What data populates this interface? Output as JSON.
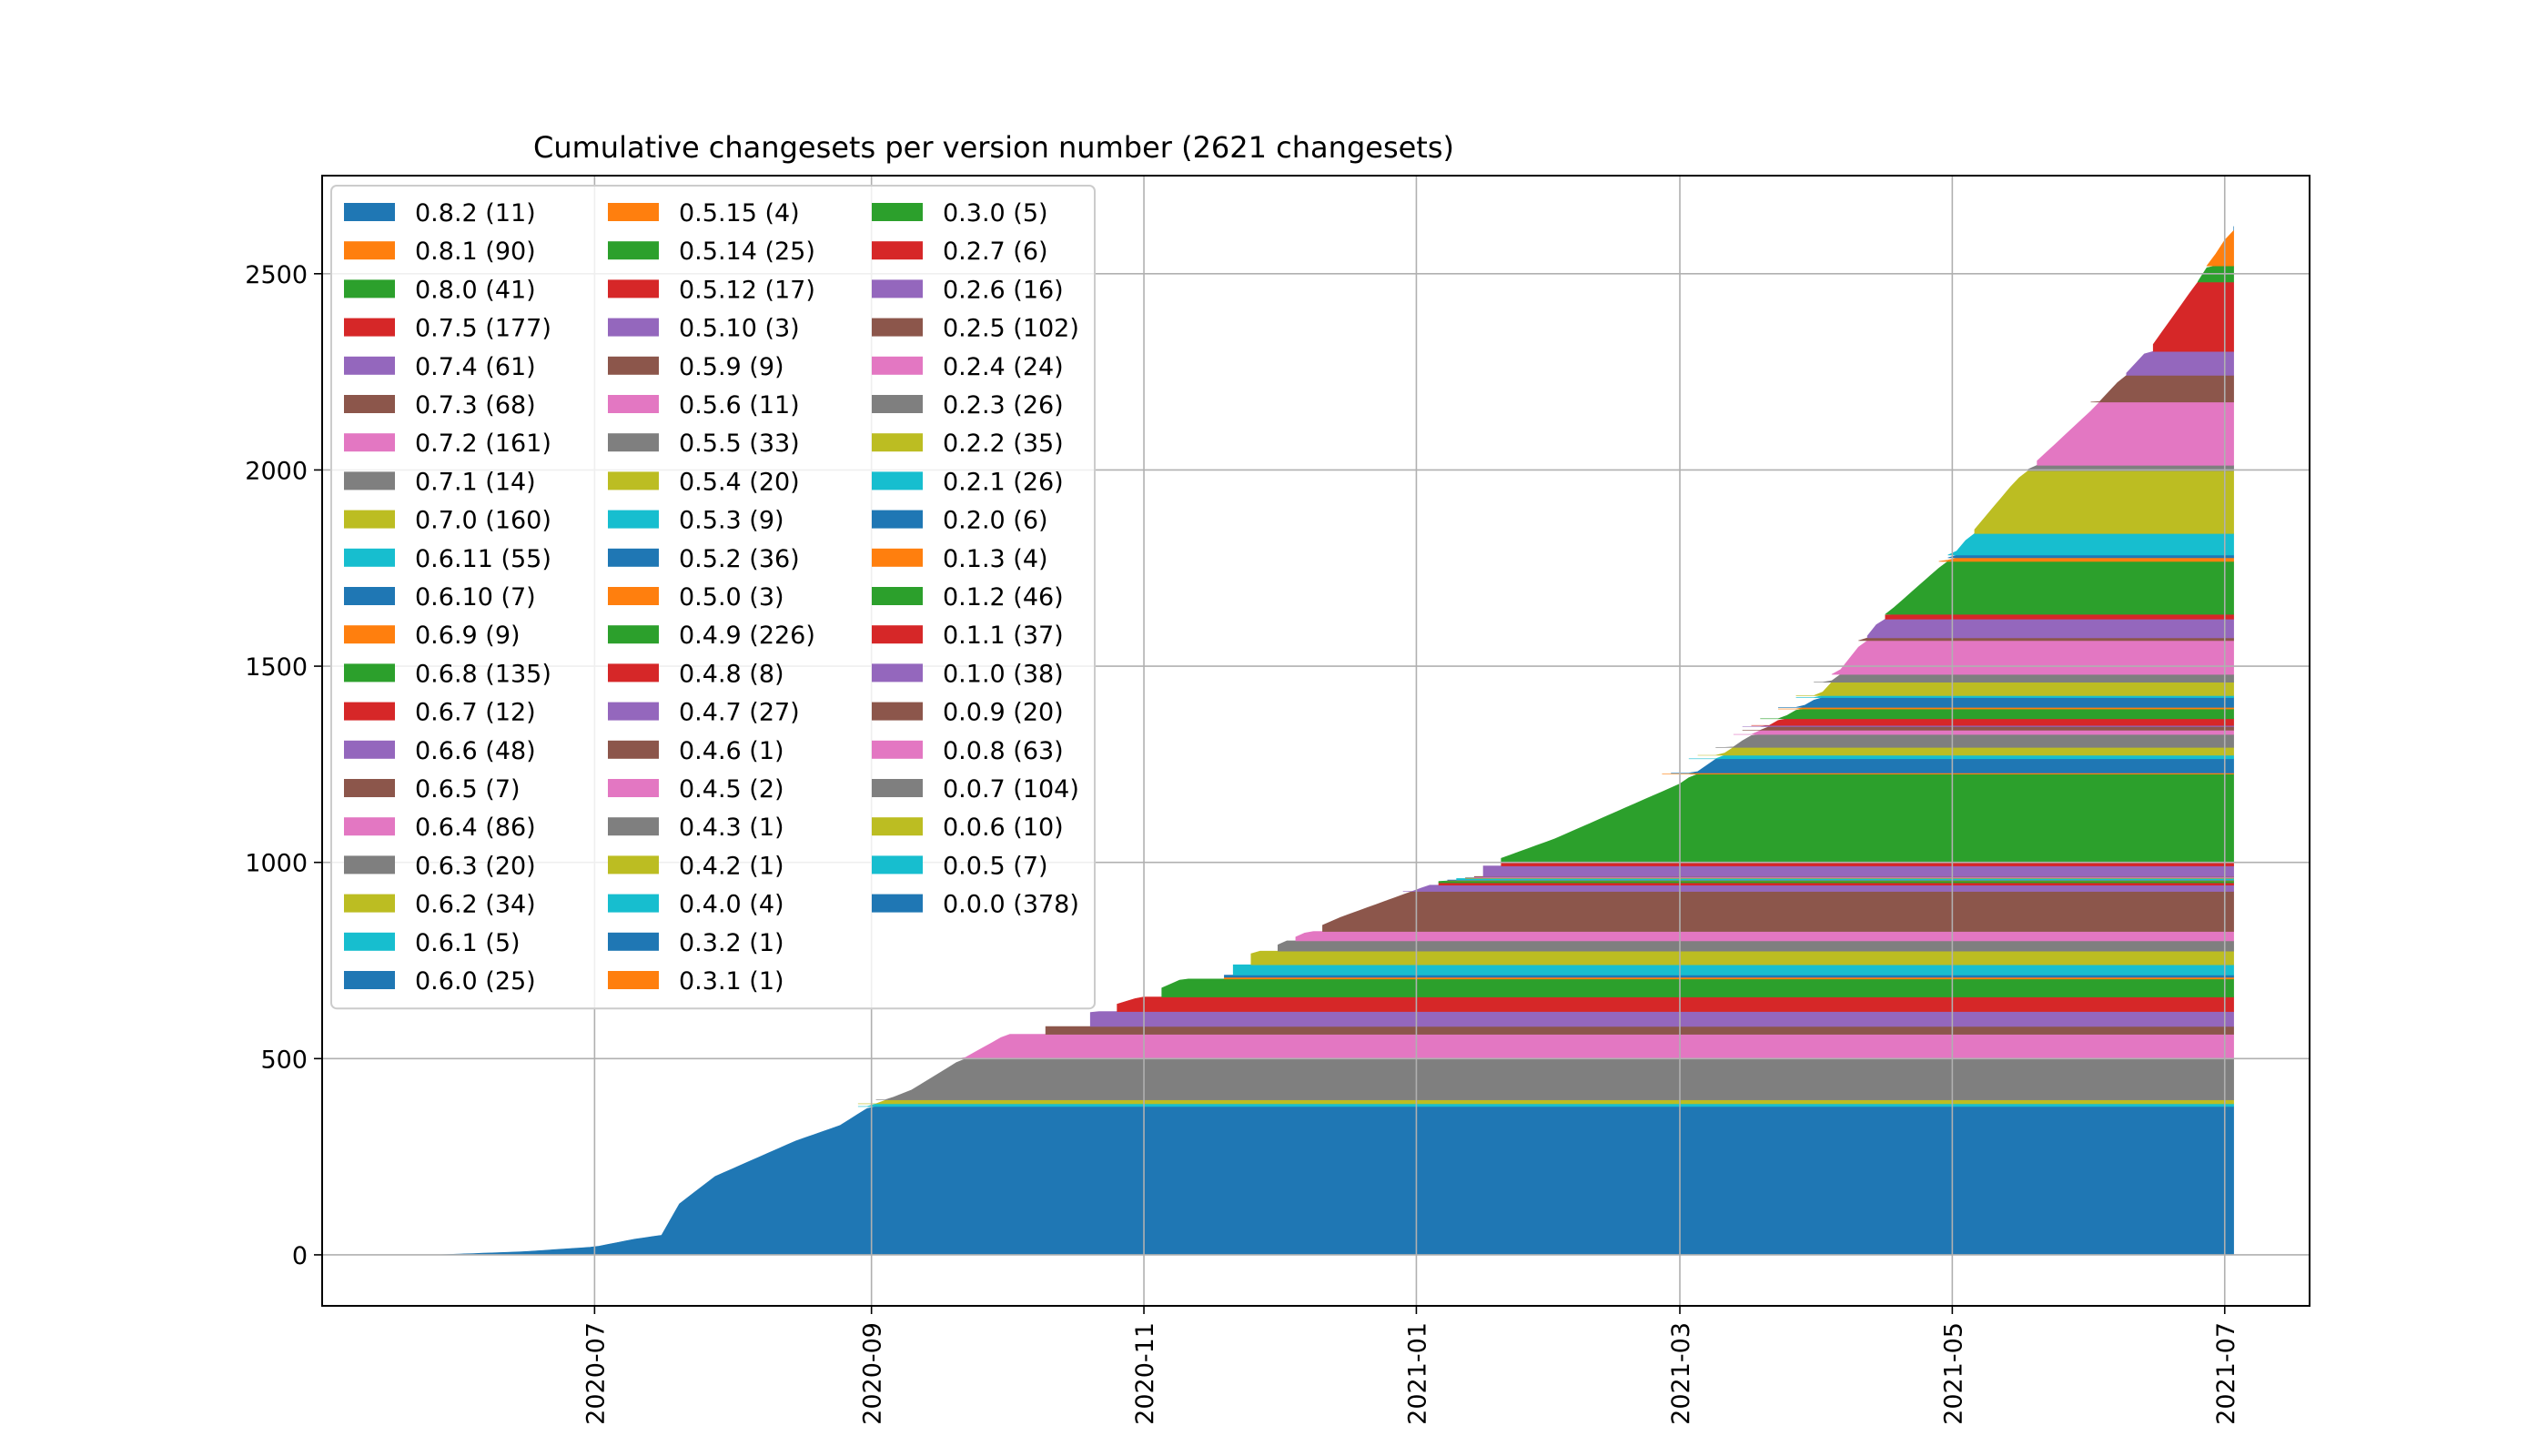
{
  "chart_data": {
    "type": "area",
    "stacked": true,
    "title": "Cumulative changesets per version number (2621 changesets)",
    "xlabel": "",
    "ylabel": "",
    "x_axis_type": "date",
    "xlim": [
      "2020-05-01",
      "2021-07-20"
    ],
    "ylim": [
      -130,
      2750
    ],
    "x_ticks": [
      "2020-07",
      "2020-09",
      "2020-11",
      "2021-01",
      "2021-03",
      "2021-05",
      "2021-07"
    ],
    "y_ticks": [
      0,
      500,
      1000,
      1500,
      2000,
      2500
    ],
    "grid": true,
    "legend_position": "top-left",
    "legend_columns": 3,
    "legend": [
      "0.8.2 (11)",
      "0.8.1 (90)",
      "0.8.0 (41)",
      "0.7.5 (177)",
      "0.7.4 (61)",
      "0.7.3 (68)",
      "0.7.2 (161)",
      "0.7.1 (14)",
      "0.7.0 (160)",
      "0.6.11 (55)",
      "0.6.10 (7)",
      "0.6.9 (9)",
      "0.6.8 (135)",
      "0.6.7 (12)",
      "0.6.6 (48)",
      "0.6.5 (7)",
      "0.6.4 (86)",
      "0.6.3 (20)",
      "0.6.2 (34)",
      "0.6.1 (5)",
      "0.6.0 (25)",
      "0.5.15 (4)",
      "0.5.14 (25)",
      "0.5.12 (17)",
      "0.5.10 (3)",
      "0.5.9 (9)",
      "0.5.6 (11)",
      "0.5.5 (33)",
      "0.5.4 (20)",
      "0.5.3 (9)",
      "0.5.2 (36)",
      "0.5.0 (3)",
      "0.4.9 (226)",
      "0.4.8 (8)",
      "0.4.7 (27)",
      "0.4.6 (1)",
      "0.4.5 (2)",
      "0.4.3 (1)",
      "0.4.2 (1)",
      "0.4.0 (4)",
      "0.3.2 (1)",
      "0.3.1 (1)",
      "0.3.0 (5)",
      "0.2.7 (6)",
      "0.2.6 (16)",
      "0.2.5 (102)",
      "0.2.4 (24)",
      "0.2.3 (26)",
      "0.2.2 (35)",
      "0.2.1 (26)",
      "0.2.0 (6)",
      "0.1.3 (4)",
      "0.1.2 (46)",
      "0.1.1 (37)",
      "0.1.0 (38)",
      "0.0.9 (20)",
      "0.0.8 (63)",
      "0.0.7 (104)",
      "0.0.6 (10)",
      "0.0.5 (7)",
      "0.0.0 (378)"
    ],
    "series_bottom_to_top": [
      {
        "version": "0.0.0",
        "count": 378,
        "color": "#1f77b4"
      },
      {
        "version": "0.0.5",
        "count": 7,
        "color": "#17becf"
      },
      {
        "version": "0.0.6",
        "count": 10,
        "color": "#bcbd22"
      },
      {
        "version": "0.0.7",
        "count": 104,
        "color": "#7f7f7f"
      },
      {
        "version": "0.0.8",
        "count": 63,
        "color": "#e377c2"
      },
      {
        "version": "0.0.9",
        "count": 20,
        "color": "#8c564b"
      },
      {
        "version": "0.1.0",
        "count": 38,
        "color": "#9467bd"
      },
      {
        "version": "0.1.1",
        "count": 37,
        "color": "#d62728"
      },
      {
        "version": "0.1.2",
        "count": 46,
        "color": "#2ca02c"
      },
      {
        "version": "0.1.3",
        "count": 4,
        "color": "#ff7f0e"
      },
      {
        "version": "0.2.0",
        "count": 6,
        "color": "#1f77b4"
      },
      {
        "version": "0.2.1",
        "count": 26,
        "color": "#17becf"
      },
      {
        "version": "0.2.2",
        "count": 35,
        "color": "#bcbd22"
      },
      {
        "version": "0.2.3",
        "count": 26,
        "color": "#7f7f7f"
      },
      {
        "version": "0.2.4",
        "count": 24,
        "color": "#e377c2"
      },
      {
        "version": "0.2.5",
        "count": 102,
        "color": "#8c564b"
      },
      {
        "version": "0.2.6",
        "count": 16,
        "color": "#9467bd"
      },
      {
        "version": "0.2.7",
        "count": 6,
        "color": "#d62728"
      },
      {
        "version": "0.3.0",
        "count": 5,
        "color": "#2ca02c"
      },
      {
        "version": "0.3.1",
        "count": 1,
        "color": "#ff7f0e"
      },
      {
        "version": "0.3.2",
        "count": 1,
        "color": "#1f77b4"
      },
      {
        "version": "0.4.0",
        "count": 4,
        "color": "#17becf"
      },
      {
        "version": "0.4.2",
        "count": 1,
        "color": "#bcbd22"
      },
      {
        "version": "0.4.3",
        "count": 1,
        "color": "#7f7f7f"
      },
      {
        "version": "0.4.5",
        "count": 2,
        "color": "#e377c2"
      },
      {
        "version": "0.4.6",
        "count": 1,
        "color": "#8c564b"
      },
      {
        "version": "0.4.7",
        "count": 27,
        "color": "#9467bd"
      },
      {
        "version": "0.4.8",
        "count": 8,
        "color": "#d62728"
      },
      {
        "version": "0.4.9",
        "count": 226,
        "color": "#2ca02c"
      },
      {
        "version": "0.5.0",
        "count": 3,
        "color": "#ff7f0e"
      },
      {
        "version": "0.5.2",
        "count": 36,
        "color": "#1f77b4"
      },
      {
        "version": "0.5.3",
        "count": 9,
        "color": "#17becf"
      },
      {
        "version": "0.5.4",
        "count": 20,
        "color": "#bcbd22"
      },
      {
        "version": "0.5.5",
        "count": 33,
        "color": "#7f7f7f"
      },
      {
        "version": "0.5.6",
        "count": 11,
        "color": "#e377c2"
      },
      {
        "version": "0.5.9",
        "count": 9,
        "color": "#8c564b"
      },
      {
        "version": "0.5.10",
        "count": 3,
        "color": "#9467bd"
      },
      {
        "version": "0.5.12",
        "count": 17,
        "color": "#d62728"
      },
      {
        "version": "0.5.14",
        "count": 25,
        "color": "#2ca02c"
      },
      {
        "version": "0.5.15",
        "count": 4,
        "color": "#ff7f0e"
      },
      {
        "version": "0.6.0",
        "count": 25,
        "color": "#1f77b4"
      },
      {
        "version": "0.6.1",
        "count": 5,
        "color": "#17becf"
      },
      {
        "version": "0.6.2",
        "count": 34,
        "color": "#bcbd22"
      },
      {
        "version": "0.6.3",
        "count": 20,
        "color": "#7f7f7f"
      },
      {
        "version": "0.6.4",
        "count": 86,
        "color": "#e377c2"
      },
      {
        "version": "0.6.5",
        "count": 7,
        "color": "#8c564b"
      },
      {
        "version": "0.6.6",
        "count": 48,
        "color": "#9467bd"
      },
      {
        "version": "0.6.7",
        "count": 12,
        "color": "#d62728"
      },
      {
        "version": "0.6.8",
        "count": 135,
        "color": "#2ca02c"
      },
      {
        "version": "0.6.9",
        "count": 9,
        "color": "#ff7f0e"
      },
      {
        "version": "0.6.10",
        "count": 7,
        "color": "#1f77b4"
      },
      {
        "version": "0.6.11",
        "count": 55,
        "color": "#17becf"
      },
      {
        "version": "0.7.0",
        "count": 160,
        "color": "#bcbd22"
      },
      {
        "version": "0.7.1",
        "count": 14,
        "color": "#7f7f7f"
      },
      {
        "version": "0.7.2",
        "count": 161,
        "color": "#e377c2"
      },
      {
        "version": "0.7.3",
        "count": 68,
        "color": "#8c564b"
      },
      {
        "version": "0.7.4",
        "count": 61,
        "color": "#9467bd"
      },
      {
        "version": "0.7.5",
        "count": 177,
        "color": "#d62728"
      },
      {
        "version": "0.8.0",
        "count": 41,
        "color": "#2ca02c"
      },
      {
        "version": "0.8.1",
        "count": 90,
        "color": "#ff7f0e"
      },
      {
        "version": "0.8.2",
        "count": 11,
        "color": "#1f77b4"
      }
    ],
    "total_curve": [
      [
        "2020-05-27",
        0
      ],
      [
        "2020-06-15",
        8
      ],
      [
        "2020-07-01",
        20
      ],
      [
        "2020-07-10",
        40
      ],
      [
        "2020-07-16",
        50
      ],
      [
        "2020-07-20",
        130
      ],
      [
        "2020-07-28",
        200
      ],
      [
        "2020-08-05",
        240
      ],
      [
        "2020-08-15",
        290
      ],
      [
        "2020-08-25",
        330
      ],
      [
        "2020-09-01",
        380
      ],
      [
        "2020-09-10",
        420
      ],
      [
        "2020-09-20",
        490
      ],
      [
        "2020-10-01",
        560
      ],
      [
        "2020-10-15",
        600
      ],
      [
        "2020-11-01",
        660
      ],
      [
        "2020-11-15",
        730
      ],
      [
        "2020-12-01",
        790
      ],
      [
        "2020-12-15",
        860
      ],
      [
        "2021-01-01",
        930
      ],
      [
        "2021-01-15",
        990
      ],
      [
        "2021-02-01",
        1060
      ],
      [
        "2021-02-15",
        1130
      ],
      [
        "2021-03-01",
        1200
      ],
      [
        "2021-03-15",
        1310
      ],
      [
        "2021-04-01",
        1420
      ],
      [
        "2021-04-15",
        1620
      ],
      [
        "2021-05-01",
        1780
      ],
      [
        "2021-05-15",
        1970
      ],
      [
        "2021-06-01",
        2150
      ],
      [
        "2021-06-15",
        2320
      ],
      [
        "2021-06-25",
        2480
      ],
      [
        "2021-07-03",
        2621
      ]
    ],
    "layer_start_dates": {
      "0.0.0": "2020-05-27",
      "0.0.5": "2020-08-28",
      "0.0.6": "2020-08-29",
      "0.0.7": "2020-09-01",
      "0.0.8": "2020-09-20",
      "0.0.9": "2020-10-10",
      "0.1.0": "2020-10-20",
      "0.1.1": "2020-10-25",
      "0.1.2": "2020-11-05",
      "0.1.3": "2020-11-18",
      "0.2.0": "2020-11-19",
      "0.2.1": "2020-11-20",
      "0.2.2": "2020-11-25",
      "0.2.3": "2020-12-01",
      "0.2.4": "2020-12-05",
      "0.2.5": "2020-12-10",
      "0.2.6": "2020-12-28",
      "0.2.7": "2021-01-05",
      "0.3.0": "2021-01-06",
      "0.3.1": "2021-01-07",
      "0.3.2": "2021-01-08",
      "0.4.0": "2021-01-10",
      "0.4.2": "2021-01-11",
      "0.4.3": "2021-01-12",
      "0.4.5": "2021-01-13",
      "0.4.6": "2021-01-14",
      "0.4.7": "2021-01-15",
      "0.4.8": "2021-01-19",
      "0.4.9": "2021-01-20",
      "0.5.0": "2021-02-25",
      "0.5.2": "2021-02-26",
      "0.5.3": "2021-03-02",
      "0.5.4": "2021-03-04",
      "0.5.5": "2021-03-08",
      "0.5.6": "2021-03-12",
      "0.5.9": "2021-03-14",
      "0.5.10": "2021-03-15",
      "0.5.12": "2021-03-16",
      "0.5.14": "2021-03-18",
      "0.5.15": "2021-03-22",
      "0.6.0": "2021-03-23",
      "0.6.1": "2021-03-26",
      "0.6.2": "2021-03-27",
      "0.6.3": "2021-03-31",
      "0.6.4": "2021-04-03",
      "0.6.5": "2021-04-10",
      "0.6.6": "2021-04-11",
      "0.6.7": "2021-04-15",
      "0.6.8": "2021-04-16",
      "0.6.9": "2021-04-28",
      "0.6.10": "2021-04-29",
      "0.6.11": "2021-04-30",
      "0.7.0": "2021-05-05",
      "0.7.1": "2021-05-18",
      "0.7.2": "2021-05-19",
      "0.7.3": "2021-06-01",
      "0.7.4": "2021-06-08",
      "0.7.5": "2021-06-14",
      "0.8.0": "2021-06-25",
      "0.8.1": "2021-06-27",
      "0.8.2": "2021-07-02"
    }
  }
}
